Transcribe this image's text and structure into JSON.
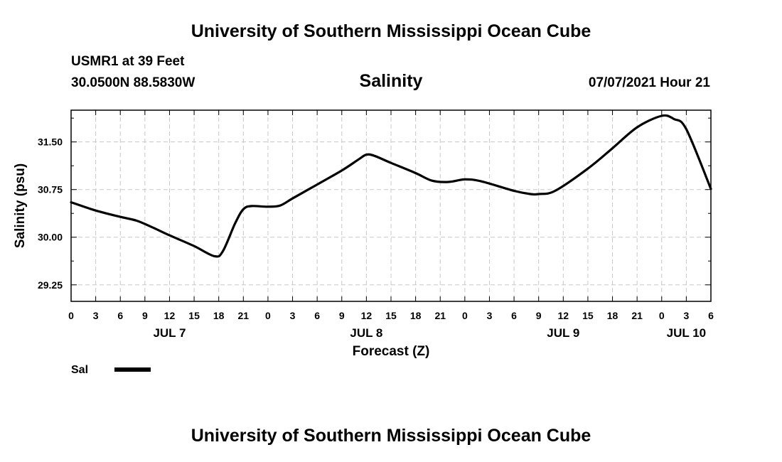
{
  "header": {
    "title": "University of Southern Mississippi Ocean Cube",
    "station": "USMR1 at 39 Feet",
    "coords": "30.0500N  88.5830W",
    "chart_title": "Salinity",
    "timestamp": "07/07/2021 Hour 21"
  },
  "footer": {
    "title": "University of Southern Mississippi Ocean Cube"
  },
  "chart_data": {
    "type": "line",
    "title": "Salinity",
    "xlabel": "Forecast (Z)",
    "ylabel": "Salinity (psu)",
    "xlim": [
      0,
      78
    ],
    "ylim": [
      28.99,
      32.0
    ],
    "grid": true,
    "y_ticks": [
      29.25,
      30.0,
      30.75,
      31.5
    ],
    "y_tick_labels": [
      "29.25",
      "30.00",
      "30.75",
      "31.50"
    ],
    "x_ticks": [
      0,
      3,
      6,
      9,
      12,
      15,
      18,
      21,
      24,
      27,
      30,
      33,
      36,
      39,
      42,
      45,
      48,
      51,
      54,
      57,
      60,
      63,
      66,
      69,
      72,
      75,
      78
    ],
    "x_tick_labels": [
      "0",
      "3",
      "6",
      "9",
      "12",
      "15",
      "18",
      "21",
      "0",
      "3",
      "6",
      "9",
      "12",
      "15",
      "18",
      "21",
      "0",
      "3",
      "6",
      "9",
      "12",
      "15",
      "18",
      "21",
      "0",
      "3",
      "6"
    ],
    "date_labels": [
      {
        "label": "JUL 7",
        "hour": 12
      },
      {
        "label": "JUL 8",
        "hour": 36
      },
      {
        "label": "JUL 9",
        "hour": 60
      },
      {
        "label": "JUL 10",
        "hour": 75
      }
    ],
    "legend": {
      "label": "Sal",
      "position": "bottom-left"
    },
    "series": [
      {
        "name": "Sal",
        "x": [
          0,
          3,
          6,
          8,
          10,
          12,
          15,
          17.5,
          18.5,
          20,
          21,
          22,
          24,
          25.5,
          27,
          30,
          33,
          35,
          36,
          37,
          39,
          42,
          44,
          46,
          48,
          50,
          54,
          56,
          57,
          59,
          63,
          66,
          69,
          72,
          73.5,
          75,
          78
        ],
        "values": [
          30.55,
          30.42,
          30.32,
          30.26,
          30.15,
          30.03,
          29.86,
          29.7,
          29.78,
          30.22,
          30.44,
          30.49,
          30.48,
          30.5,
          30.61,
          30.83,
          31.05,
          31.22,
          31.3,
          31.28,
          31.17,
          31.01,
          30.89,
          30.87,
          30.91,
          30.88,
          30.73,
          30.68,
          30.68,
          30.73,
          31.08,
          31.4,
          31.73,
          31.91,
          31.86,
          31.7,
          30.76
        ]
      }
    ]
  }
}
